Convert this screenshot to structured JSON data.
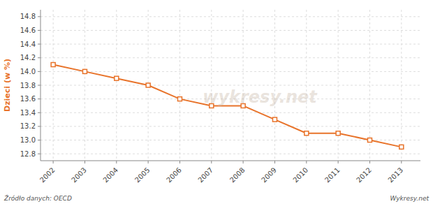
{
  "chart_data": {
    "type": "line",
    "y_label": "Dzieci (w %)",
    "x": [
      2002,
      2003,
      2004,
      2005,
      2006,
      2007,
      2008,
      2009,
      2010,
      2011,
      2012,
      2013
    ],
    "values": [
      14.1,
      14.0,
      13.9,
      13.8,
      13.6,
      13.5,
      13.5,
      13.3,
      13.1,
      13.1,
      13.0,
      12.9
    ],
    "color": "#E8732A",
    "marker": "square",
    "line_style": "solid",
    "xlim": [
      2001.6,
      2013.6
    ],
    "xticks": [
      2002,
      2003,
      2004,
      2005,
      2006,
      2007,
      2008,
      2009,
      2010,
      2011,
      2012,
      2013
    ],
    "ylim": [
      12.7,
      14.9
    ],
    "yticks": [
      12.8,
      {
        "value": 13,
        "label": "13.0"
      },
      13.2,
      13.4,
      13.6,
      13.8,
      {
        "value": 14,
        "label": "14.0"
      },
      14.2,
      14.4,
      14.6,
      14.8
    ],
    "grid": true,
    "annotations": [
      "Źródło danych:  OECD",
      "Wykresy.net",
      "wykresy.net"
    ]
  }
}
